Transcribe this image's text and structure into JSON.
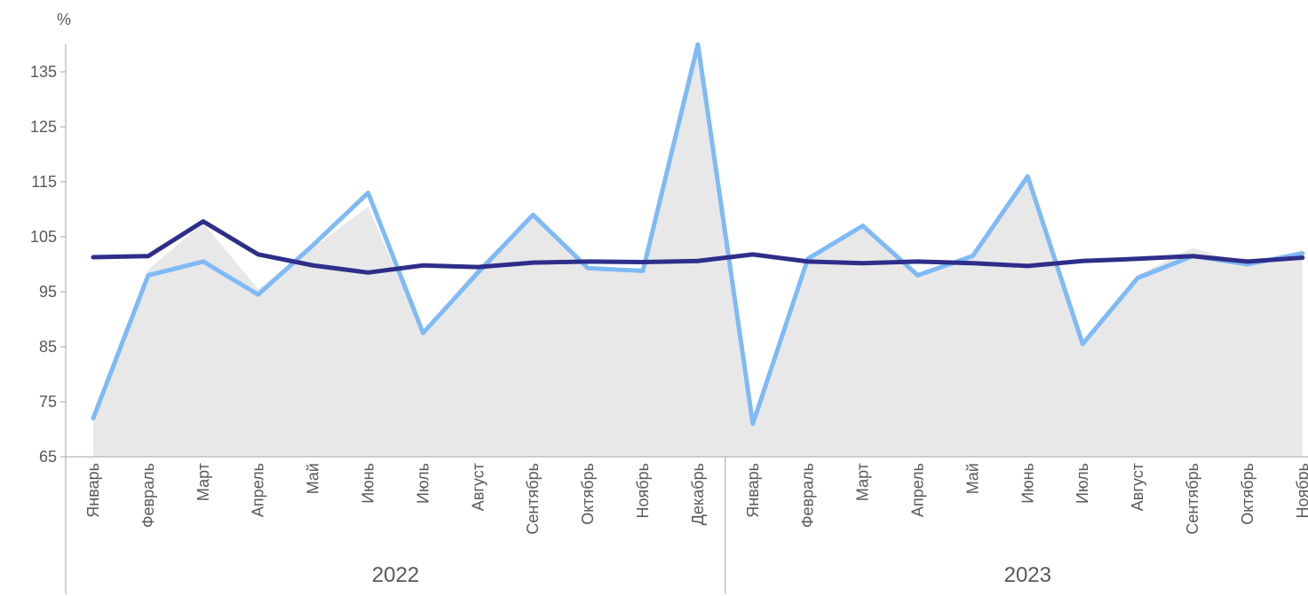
{
  "chart_data": {
    "type": "line",
    "ylabel": "%",
    "ylim": [
      65,
      140
    ],
    "yticks": [
      65,
      75,
      85,
      95,
      105,
      115,
      125,
      135
    ],
    "categories": [
      "Январь",
      "Февраль",
      "Март",
      "Апрель",
      "Май",
      "Июнь",
      "Июль",
      "Август",
      "Сентябрь",
      "Октябрь",
      "Ноябрь",
      "Декабрь",
      "Январь",
      "Февраль",
      "Март",
      "Апрель",
      "Май",
      "Июнь",
      "Июль",
      "Август",
      "Сентябрь",
      "Октябрь",
      "Ноябрь"
    ],
    "groups": [
      {
        "label": "2022",
        "start": 0,
        "count": 12
      },
      {
        "label": "2023",
        "start": 12,
        "count": 11
      }
    ],
    "colors": {
      "area": "#e8e8e8",
      "light_line": "#7fbaf5",
      "dark_line": "#2e2e8a",
      "axis": "#a6a6a6"
    },
    "series": [
      {
        "kind": "area",
        "values": [
          72,
          99,
          107.5,
          95.5,
          103,
          110.5,
          87.5,
          99.5,
          109,
          99.5,
          99,
          140,
          71,
          101,
          107,
          98,
          102,
          116,
          85.5,
          98,
          103,
          100,
          102.5
        ]
      },
      {
        "kind": "line",
        "color": "#7fbaf5",
        "values": [
          72,
          98,
          100.5,
          94.5,
          103.5,
          113,
          87.5,
          98.5,
          109,
          99.3,
          98.8,
          140,
          71,
          101,
          107,
          98,
          101.5,
          116,
          85.5,
          97.5,
          101.5,
          100,
          102
        ]
      },
      {
        "kind": "line",
        "color": "#2e2e8a",
        "values": [
          101.3,
          101.5,
          107.8,
          101.8,
          99.8,
          98.5,
          99.8,
          99.5,
          100.3,
          100.5,
          100.4,
          100.6,
          101.8,
          100.5,
          100.2,
          100.5,
          100.2,
          99.7,
          100.6,
          101,
          101.5,
          100.5,
          101.2
        ]
      }
    ]
  }
}
